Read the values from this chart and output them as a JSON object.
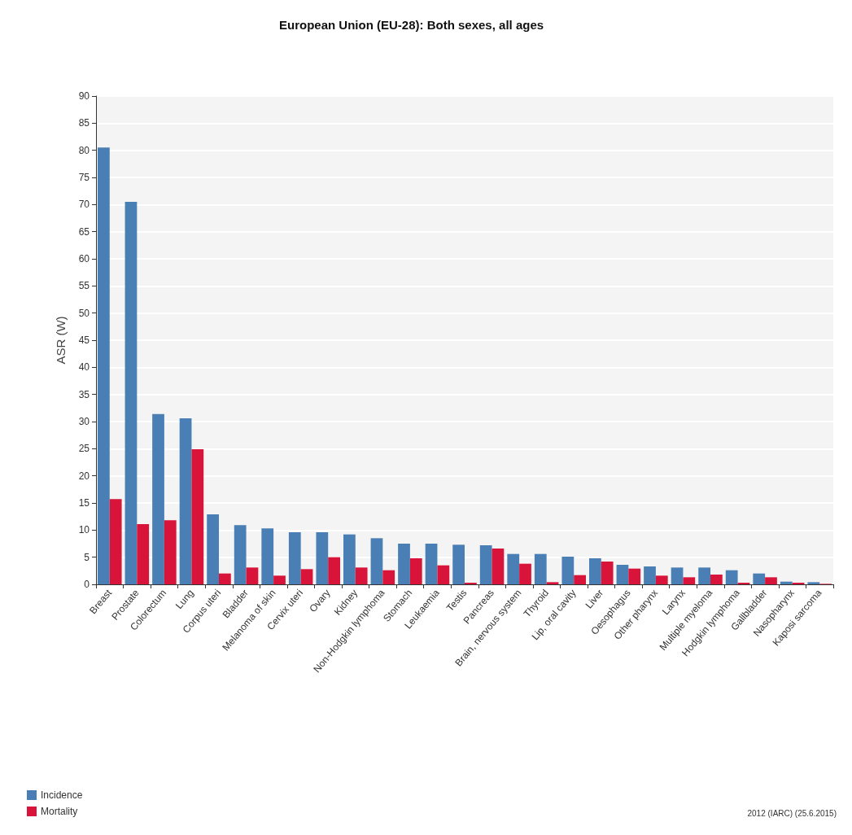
{
  "chart_data": {
    "type": "bar",
    "title": "European Union (EU-28): Both sexes, all ages",
    "ylabel": "ASR (W)",
    "categories": [
      "Breast",
      "Prostate",
      "Colorectum",
      "Lung",
      "Corpus uteri",
      "Bladder",
      "Melanoma of skin",
      "Cervix uteri",
      "Ovary",
      "Kidney",
      "Non-Hodgkin lymphoma",
      "Stomach",
      "Leukaemia",
      "Testis",
      "Pancreas",
      "Brain, nervous system",
      "Thyroid",
      "Lip, oral cavity",
      "Liver",
      "Oesophagus",
      "Other pharynx",
      "Larynx",
      "Multiple myeloma",
      "Hodgkin lymphoma",
      "Gallbladder",
      "Nasopharynx",
      "Kaposi sarcoma"
    ],
    "series": [
      {
        "name": "Incidence",
        "color": "#4a7fb5",
        "values": [
          80.5,
          70.5,
          31.4,
          30.6,
          12.9,
          10.9,
          10.3,
          9.6,
          9.6,
          9.2,
          8.5,
          7.5,
          7.5,
          7.3,
          7.2,
          5.6,
          5.6,
          5.1,
          4.8,
          3.6,
          3.3,
          3.1,
          3.1,
          2.6,
          2.0,
          0.5,
          0.4
        ]
      },
      {
        "name": "Mortality",
        "color": "#d9143a",
        "values": [
          15.7,
          11.1,
          11.8,
          24.9,
          2.0,
          3.1,
          1.6,
          2.8,
          5.0,
          3.1,
          2.6,
          4.8,
          3.5,
          0.3,
          6.6,
          3.8,
          0.4,
          1.7,
          4.2,
          2.9,
          1.6,
          1.3,
          1.8,
          0.3,
          1.3,
          0.3,
          0.1
        ]
      }
    ],
    "ylim": [
      0,
      90
    ],
    "yticks": [
      0,
      5,
      10,
      15,
      20,
      25,
      30,
      35,
      40,
      45,
      50,
      55,
      60,
      65,
      70,
      75,
      80,
      85,
      90
    ],
    "grid": "y",
    "legend": "bottom left",
    "annotations": [
      "2012 (IARC) (25.6.2015)"
    ]
  }
}
